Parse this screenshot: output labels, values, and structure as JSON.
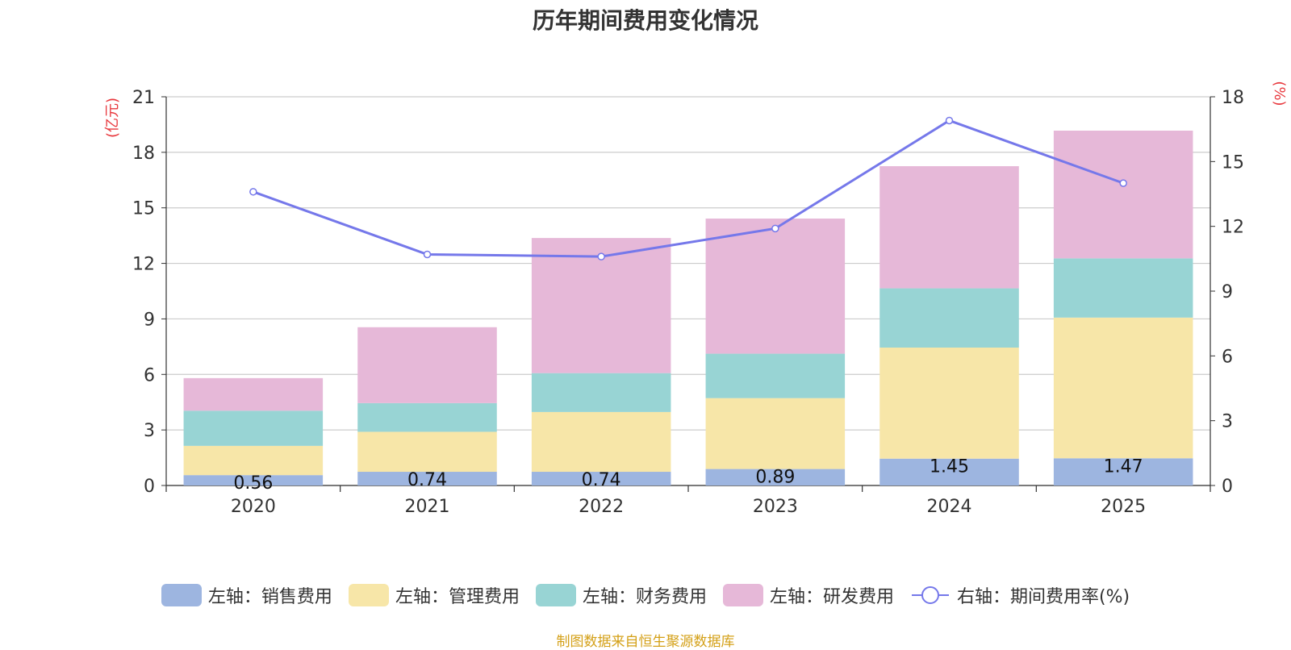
{
  "chart_data": {
    "type": "bar",
    "stacked": true,
    "title": "历年期间费用变化情况",
    "categories": [
      "2020",
      "2021",
      "2022",
      "2023",
      "2024",
      "2025"
    ],
    "left_axis": {
      "label": "(亿元)",
      "ylim": [
        0,
        21
      ],
      "ticks": [
        0,
        3,
        6,
        9,
        12,
        15,
        18,
        21
      ]
    },
    "right_axis": {
      "label": "(%)",
      "ylim": [
        0,
        18
      ],
      "ticks": [
        0,
        3,
        6,
        9,
        12,
        15,
        18
      ]
    },
    "series": [
      {
        "name": "左轴：销售费用",
        "axis": "left",
        "color": "#9db5e0",
        "values": [
          0.56,
          0.74,
          0.74,
          0.89,
          1.45,
          1.47
        ],
        "labels": [
          "0.56",
          "0.74",
          "0.74",
          "0.89",
          "1.45",
          "1.47"
        ]
      },
      {
        "name": "左轴：管理费用",
        "axis": "left",
        "color": "#f7e6a8",
        "values": [
          1.58,
          2.16,
          3.23,
          3.83,
          6.0,
          7.6
        ]
      },
      {
        "name": "左轴：财务费用",
        "axis": "left",
        "color": "#98d4d4",
        "values": [
          1.9,
          1.55,
          2.1,
          2.4,
          3.2,
          3.2
        ]
      },
      {
        "name": "左轴：研发费用",
        "axis": "left",
        "color": "#e6b8d8",
        "values": [
          1.76,
          4.1,
          7.3,
          7.3,
          6.6,
          6.9
        ]
      },
      {
        "name": "右轴：期间费用率(%)",
        "axis": "right",
        "type": "line",
        "color": "#7578ea",
        "values": [
          13.6,
          10.7,
          10.6,
          11.9,
          16.9,
          14.0
        ]
      }
    ]
  },
  "source": "制图数据来自恒生聚源数据库"
}
